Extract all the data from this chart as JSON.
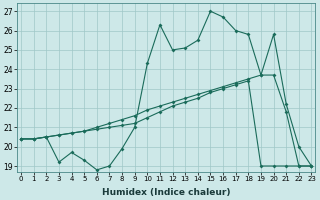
{
  "xlabel": "Humidex (Indice chaleur)",
  "ylabel": "",
  "background_color": "#cde8e8",
  "grid_color": "#a0c8c8",
  "line_color": "#1a6b5a",
  "xlim": [
    0,
    23
  ],
  "ylim": [
    18.7,
    27.4
  ],
  "xticks": [
    0,
    1,
    2,
    3,
    4,
    5,
    6,
    7,
    8,
    9,
    10,
    11,
    12,
    13,
    14,
    15,
    16,
    17,
    18,
    19,
    20,
    21,
    22,
    23
  ],
  "yticks": [
    19,
    20,
    21,
    22,
    23,
    24,
    25,
    26,
    27
  ],
  "series1_x": [
    0,
    1,
    2,
    3,
    4,
    5,
    6,
    7,
    8,
    9,
    10,
    11,
    12,
    13,
    14,
    15,
    16,
    17,
    18,
    19,
    20,
    21,
    22,
    23
  ],
  "series1_y": [
    20.4,
    20.4,
    20.5,
    19.2,
    19.7,
    19.3,
    18.8,
    19.0,
    19.9,
    21.0,
    24.3,
    26.3,
    25.0,
    25.1,
    25.5,
    27.0,
    26.7,
    26.0,
    25.8,
    23.7,
    25.8,
    22.2,
    20.0,
    19.0
  ],
  "series2_x": [
    0,
    1,
    2,
    3,
    4,
    5,
    6,
    7,
    8,
    9,
    10,
    11,
    12,
    13,
    14,
    15,
    16,
    17,
    18,
    19,
    20,
    21,
    22,
    23
  ],
  "series2_y": [
    20.4,
    20.4,
    20.5,
    20.6,
    20.7,
    20.8,
    21.0,
    21.2,
    21.4,
    21.6,
    21.9,
    22.1,
    22.3,
    22.5,
    22.7,
    22.9,
    23.1,
    23.3,
    23.5,
    23.7,
    23.7,
    21.8,
    19.0,
    19.0
  ],
  "series3_x": [
    0,
    1,
    2,
    3,
    4,
    5,
    6,
    7,
    8,
    9,
    10,
    11,
    12,
    13,
    14,
    15,
    16,
    17,
    18,
    19,
    20,
    21,
    22,
    23
  ],
  "series3_y": [
    20.4,
    20.4,
    20.5,
    20.6,
    20.7,
    20.8,
    20.9,
    21.0,
    21.1,
    21.2,
    21.5,
    21.8,
    22.1,
    22.3,
    22.5,
    22.8,
    23.0,
    23.2,
    23.4,
    19.0,
    19.0,
    19.0,
    19.0,
    19.0
  ]
}
